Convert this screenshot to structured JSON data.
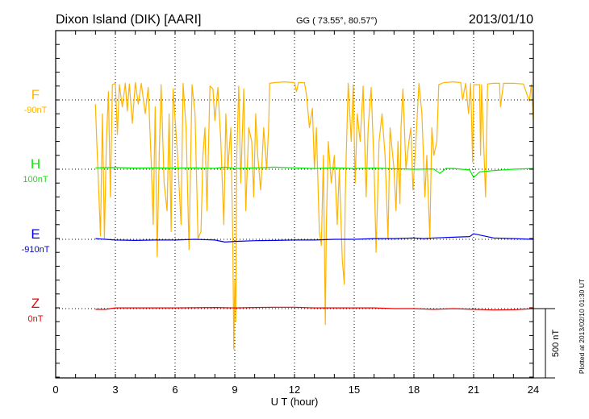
{
  "chart_data": {
    "type": "line",
    "title": "Dixon Island (DIK)  [AARI]",
    "coords": "GG ( 73.55°,  80.57°)",
    "date": "2013/01/10",
    "xlabel": "U T (hour)",
    "xlim": [
      0,
      24
    ],
    "xticks": [
      "0",
      "3",
      "6",
      "9",
      "12",
      "15",
      "18",
      "21",
      "24"
    ],
    "scale_bar_label": "500 nT",
    "scale_bar_nT": 500,
    "plotted_at": "Plotted at 2013/02/10 01:30 UT",
    "grid": true,
    "series": [
      {
        "name": "F",
        "offset_label": "-90nT",
        "color": "#ffb400",
        "points": [
          [
            2.0,
            -30
          ],
          [
            2.05,
            -250
          ],
          [
            2.15,
            -600
          ],
          [
            2.25,
            -980
          ],
          [
            2.35,
            -100
          ],
          [
            2.45,
            -1000
          ],
          [
            2.55,
            -300
          ],
          [
            2.65,
            60
          ],
          [
            2.75,
            -700
          ],
          [
            2.85,
            110
          ],
          [
            3.0,
            120
          ],
          [
            3.1,
            -250
          ],
          [
            3.2,
            110
          ],
          [
            3.35,
            -50
          ],
          [
            3.5,
            120
          ],
          [
            3.6,
            -80
          ],
          [
            3.7,
            115
          ],
          [
            3.85,
            -170
          ],
          [
            4.0,
            125
          ],
          [
            4.15,
            -30
          ],
          [
            4.3,
            120
          ],
          [
            4.5,
            -100
          ],
          [
            4.65,
            90
          ],
          [
            4.8,
            -450
          ],
          [
            4.9,
            -900
          ],
          [
            5.0,
            -50
          ],
          [
            5.1,
            -1130
          ],
          [
            5.2,
            -400
          ],
          [
            5.3,
            110
          ],
          [
            5.45,
            -600
          ],
          [
            5.6,
            -800
          ],
          [
            5.7,
            -100
          ],
          [
            5.8,
            -950
          ],
          [
            5.9,
            80
          ],
          [
            6.1,
            -350
          ],
          [
            6.3,
            -900
          ],
          [
            6.4,
            120
          ],
          [
            6.55,
            -200
          ],
          [
            6.7,
            -1080
          ],
          [
            6.85,
            110
          ],
          [
            7.0,
            -100
          ],
          [
            7.15,
            -1000
          ],
          [
            7.3,
            -950
          ],
          [
            7.4,
            -400
          ],
          [
            7.5,
            -200
          ],
          [
            7.6,
            -800
          ],
          [
            7.75,
            100
          ],
          [
            7.9,
            80
          ],
          [
            8.0,
            -150
          ],
          [
            8.15,
            90
          ],
          [
            8.3,
            -300
          ],
          [
            8.45,
            -900
          ],
          [
            8.55,
            -100
          ],
          [
            8.65,
            -500
          ],
          [
            8.8,
            -200
          ],
          [
            8.9,
            -1000
          ],
          [
            8.95,
            -1800
          ],
          [
            9.0,
            -1300
          ],
          [
            9.05,
            -1600
          ],
          [
            9.1,
            -400
          ],
          [
            9.2,
            100
          ],
          [
            9.3,
            -600
          ],
          [
            9.45,
            80
          ],
          [
            9.55,
            -800
          ],
          [
            9.7,
            -200
          ],
          [
            9.85,
            -300
          ],
          [
            9.95,
            -700
          ],
          [
            10.05,
            -100
          ],
          [
            10.15,
            -400
          ],
          [
            10.3,
            -650
          ],
          [
            10.45,
            -200
          ],
          [
            10.6,
            -500
          ],
          [
            10.7,
            -200
          ],
          [
            10.75,
            120
          ],
          [
            11.0,
            125
          ],
          [
            11.5,
            130
          ],
          [
            12.0,
            125
          ],
          [
            12.1,
            60
          ],
          [
            12.2,
            125
          ],
          [
            12.5,
            125
          ],
          [
            12.6,
            40
          ],
          [
            12.75,
            -200
          ],
          [
            12.9,
            -60
          ],
          [
            13.0,
            -500
          ],
          [
            13.1,
            -200
          ],
          [
            13.25,
            -950
          ],
          [
            13.35,
            -1050
          ],
          [
            13.45,
            -400
          ],
          [
            13.55,
            -1620
          ],
          [
            13.6,
            -900
          ],
          [
            13.7,
            -300
          ],
          [
            13.85,
            -600
          ],
          [
            14.0,
            -400
          ],
          [
            14.15,
            -900
          ],
          [
            14.25,
            -500
          ],
          [
            14.4,
            -1150
          ],
          [
            14.5,
            -1330
          ],
          [
            14.55,
            -700
          ],
          [
            14.6,
            -400
          ],
          [
            14.7,
            120
          ],
          [
            14.85,
            -300
          ],
          [
            14.95,
            110
          ],
          [
            15.05,
            -600
          ],
          [
            15.15,
            -100
          ],
          [
            15.3,
            -300
          ],
          [
            15.45,
            100
          ],
          [
            15.6,
            -700
          ],
          [
            15.7,
            -200
          ],
          [
            15.85,
            90
          ],
          [
            16.0,
            -500
          ],
          [
            16.1,
            -1100
          ],
          [
            16.25,
            -300
          ],
          [
            16.4,
            -100
          ],
          [
            16.55,
            -400
          ],
          [
            16.7,
            -1000
          ],
          [
            16.8,
            -200
          ],
          [
            17.0,
            -500
          ],
          [
            17.1,
            -800
          ],
          [
            17.2,
            -300
          ],
          [
            17.3,
            -750
          ],
          [
            17.35,
            -200
          ],
          [
            17.45,
            80
          ],
          [
            17.6,
            -500
          ],
          [
            17.75,
            -300
          ],
          [
            17.85,
            -200
          ],
          [
            17.95,
            -650
          ],
          [
            18.1,
            -300
          ],
          [
            18.25,
            120
          ],
          [
            18.4,
            -100
          ],
          [
            18.55,
            -700
          ],
          [
            18.65,
            -400
          ],
          [
            18.8,
            -1000
          ],
          [
            18.9,
            -200
          ],
          [
            19.0,
            -400
          ],
          [
            19.15,
            -300
          ],
          [
            19.25,
            110
          ],
          [
            19.5,
            125
          ],
          [
            20.0,
            130
          ],
          [
            20.35,
            125
          ],
          [
            20.45,
            0
          ],
          [
            20.6,
            120
          ],
          [
            20.75,
            -100
          ],
          [
            20.85,
            120
          ],
          [
            20.95,
            -450
          ],
          [
            21.0,
            110
          ],
          [
            21.3,
            110
          ],
          [
            21.35,
            -400
          ],
          [
            21.4,
            110
          ],
          [
            21.6,
            -700
          ],
          [
            21.7,
            115
          ],
          [
            22.0,
            120
          ],
          [
            22.3,
            120
          ],
          [
            22.35,
            -50
          ],
          [
            22.5,
            120
          ],
          [
            23.0,
            120
          ],
          [
            23.5,
            115
          ],
          [
            23.8,
            -10
          ],
          [
            23.9,
            110
          ],
          [
            24.0,
            -150
          ]
        ]
      },
      {
        "name": "H",
        "offset_label": "100nT",
        "color": "#00ee00",
        "points": [
          [
            2.0,
            10
          ],
          [
            3,
            12
          ],
          [
            4,
            8
          ],
          [
            5,
            10
          ],
          [
            6,
            8
          ],
          [
            7,
            10
          ],
          [
            8,
            6
          ],
          [
            8.5,
            15
          ],
          [
            9,
            5
          ],
          [
            10,
            10
          ],
          [
            11,
            15
          ],
          [
            12,
            10
          ],
          [
            13,
            5
          ],
          [
            14,
            10
          ],
          [
            15,
            5
          ],
          [
            16,
            8
          ],
          [
            17,
            4
          ],
          [
            18,
            0
          ],
          [
            19,
            2
          ],
          [
            19.3,
            -30
          ],
          [
            19.6,
            5
          ],
          [
            20,
            5
          ],
          [
            20.8,
            -5
          ],
          [
            21.0,
            -60
          ],
          [
            21.3,
            -20
          ],
          [
            22,
            -10
          ],
          [
            23,
            0
          ],
          [
            24,
            5
          ]
        ]
      },
      {
        "name": "E",
        "offset_label": "-910nT",
        "color": "#0000ee",
        "points": [
          [
            2.0,
            5
          ],
          [
            3,
            -5
          ],
          [
            4,
            -8
          ],
          [
            5,
            -5
          ],
          [
            6,
            -5
          ],
          [
            7,
            0
          ],
          [
            8,
            -5
          ],
          [
            8.5,
            -20
          ],
          [
            9,
            -15
          ],
          [
            10,
            -10
          ],
          [
            11,
            -8
          ],
          [
            12,
            -5
          ],
          [
            13,
            -5
          ],
          [
            14,
            0
          ],
          [
            15,
            0
          ],
          [
            16,
            5
          ],
          [
            17,
            5
          ],
          [
            18,
            10
          ],
          [
            18.5,
            5
          ],
          [
            19,
            10
          ],
          [
            20,
            15
          ],
          [
            20.8,
            20
          ],
          [
            21.0,
            40
          ],
          [
            21.5,
            25
          ],
          [
            22,
            10
          ],
          [
            23,
            5
          ],
          [
            24,
            0
          ]
        ]
      },
      {
        "name": "Z",
        "offset_label": "0nT",
        "color": "#ee0000",
        "points": [
          [
            2.0,
            -5
          ],
          [
            2.5,
            -5
          ],
          [
            3,
            5
          ],
          [
            4,
            5
          ],
          [
            6,
            5
          ],
          [
            8,
            8
          ],
          [
            9,
            5
          ],
          [
            10,
            8
          ],
          [
            11,
            10
          ],
          [
            12,
            10
          ],
          [
            13,
            5
          ],
          [
            15,
            5
          ],
          [
            16,
            5
          ],
          [
            17,
            0
          ],
          [
            18,
            0
          ],
          [
            19,
            -5
          ],
          [
            20,
            0
          ],
          [
            21,
            -5
          ],
          [
            22,
            -10
          ],
          [
            23,
            -8
          ],
          [
            24,
            0
          ]
        ]
      }
    ]
  }
}
